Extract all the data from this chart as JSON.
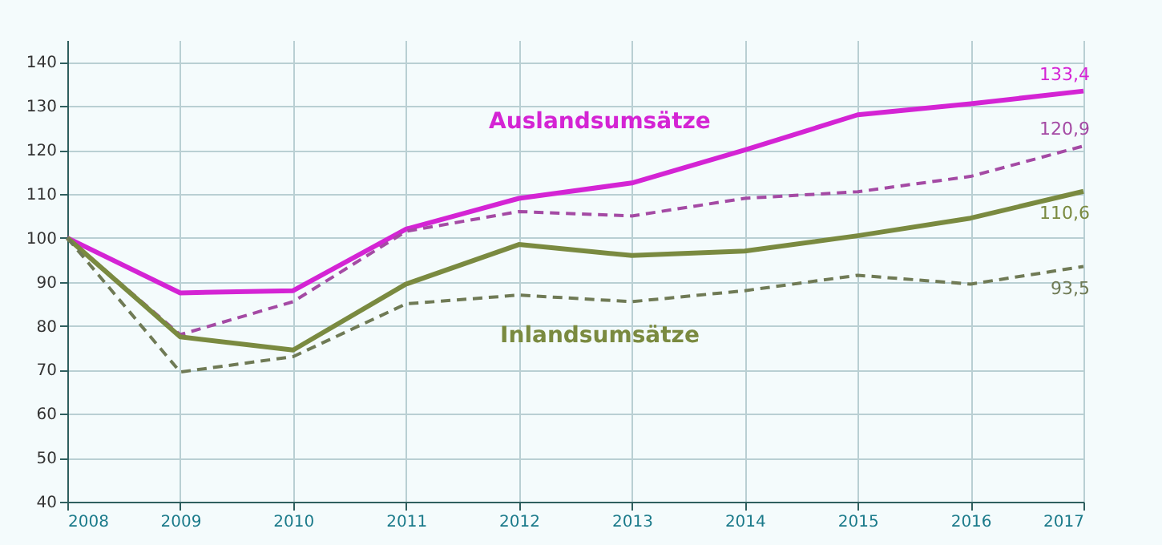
{
  "chart_data": {
    "type": "line",
    "x": [
      2008,
      2009,
      2010,
      2011,
      2012,
      2013,
      2014,
      2015,
      2016,
      2017
    ],
    "series": [
      {
        "name": "Auslandsumsätze",
        "color": "#d424d4",
        "line_style": "solid",
        "values": [
          100,
          87.5,
          88,
          102,
          109,
          112.5,
          120,
          128,
          130.5,
          133.4
        ],
        "value_labels": [
          null,
          null,
          null,
          null,
          null,
          null,
          null,
          null,
          null,
          "133,4"
        ]
      },
      {
        "color": "#a44aa4",
        "line_style": "dashed",
        "values": [
          100,
          78,
          85.5,
          101.5,
          106,
          105,
          109,
          110.5,
          114,
          120.9
        ],
        "value_labels": [
          null,
          null,
          null,
          null,
          null,
          null,
          null,
          null,
          null,
          "120,9"
        ]
      },
      {
        "name": "Inlandsumsätze",
        "color": "#7a8a40",
        "line_style": "solid",
        "values": [
          100,
          77.5,
          74.5,
          89.5,
          98.5,
          96,
          97,
          100.5,
          104.5,
          110.6
        ],
        "value_labels": [
          null,
          null,
          null,
          null,
          null,
          null,
          null,
          null,
          null,
          "110,6"
        ]
      },
      {
        "color": "#6f7a55",
        "line_style": "dashed",
        "values": [
          100,
          69.5,
          73,
          85,
          87,
          85.5,
          88,
          91.5,
          89.5,
          93.5
        ],
        "value_labels": [
          null,
          null,
          null,
          null,
          null,
          null,
          null,
          null,
          null,
          "93,5"
        ]
      }
    ],
    "xlim": [
      2008,
      2017
    ],
    "xticks": [
      2008,
      2009,
      2010,
      2011,
      2012,
      2013,
      2014,
      2015,
      2016,
      2017
    ],
    "ylim": [
      40,
      145
    ],
    "yticks": [
      40,
      50,
      60,
      70,
      80,
      90,
      100,
      110,
      120,
      130,
      140
    ],
    "grid": true,
    "marker": "none"
  }
}
